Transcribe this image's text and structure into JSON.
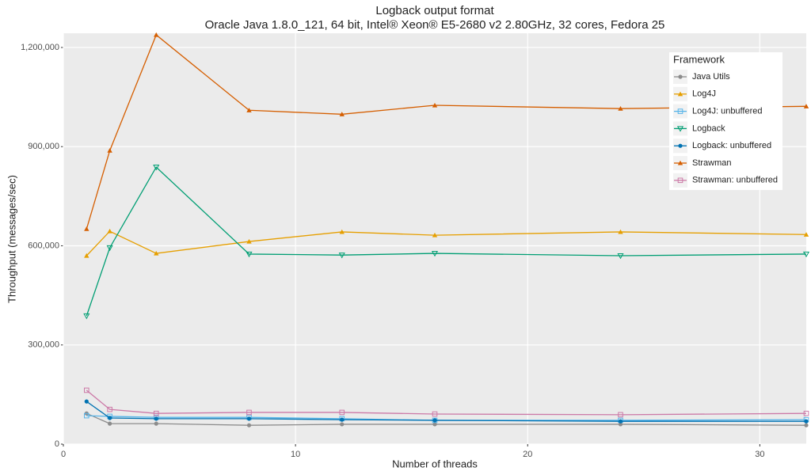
{
  "chart_data": {
    "type": "line",
    "title": "Logback output format",
    "subtitle": "Oracle Java 1.8.0_121, 64 bit, Intel® Xeon® E5-2680 v2 2.80GHz, 32 cores, Fedora 25",
    "x_label": "Number of threads",
    "y_label": "Throughput (messages/sec)",
    "legend_title": "Framework",
    "legend_position": "top-right",
    "grid": true,
    "x": [
      1,
      2,
      4,
      8,
      12,
      16,
      24,
      32
    ],
    "xlim": [
      0,
      32
    ],
    "xticks": [
      0,
      10,
      20,
      30
    ],
    "ylim": [
      0,
      1243000
    ],
    "yticks": [
      0,
      {
        "value": 300000,
        "label": "300,000"
      },
      {
        "value": 600000,
        "label": "600,000"
      },
      {
        "value": 900000,
        "label": "900,000"
      },
      {
        "value": 1200000,
        "label": "1,200,000"
      }
    ],
    "series": [
      {
        "name": "Java Utils",
        "color": "#8c8c8c",
        "shape": "circle",
        "values": [
          93000,
          62000,
          62000,
          57000,
          60000,
          60000,
          60000,
          57000
        ]
      },
      {
        "name": "Log4J",
        "color": "#e69f00",
        "shape": "triangle",
        "values": [
          570000,
          644000,
          577000,
          613000,
          642000,
          632000,
          642000,
          634000
        ]
      },
      {
        "name": "Log4J: unbuffered",
        "color": "#56b4e9",
        "shape": "open-square",
        "values": [
          86000,
          84000,
          81000,
          81000,
          77000,
          72000,
          72000,
          74000
        ]
      },
      {
        "name": "Logback",
        "color": "#009e73",
        "shape": "open-triangle-down",
        "values": [
          388000,
          594000,
          838000,
          575000,
          572000,
          577000,
          570000,
          575000
        ]
      },
      {
        "name": "Logback: unbuffered",
        "color": "#0072b2",
        "shape": "circle",
        "values": [
          129000,
          79000,
          77000,
          77000,
          74000,
          72000,
          69000,
          69000
        ]
      },
      {
        "name": "Strawman",
        "color": "#d55e00",
        "shape": "triangle",
        "values": [
          651000,
          888000,
          1238000,
          1010000,
          998000,
          1025000,
          1015000,
          1022000
        ]
      },
      {
        "name": "Strawman: unbuffered",
        "color": "#cc79a7",
        "shape": "open-square",
        "values": [
          163000,
          105000,
          93000,
          96000,
          96000,
          91000,
          89000,
          93000
        ]
      }
    ]
  }
}
